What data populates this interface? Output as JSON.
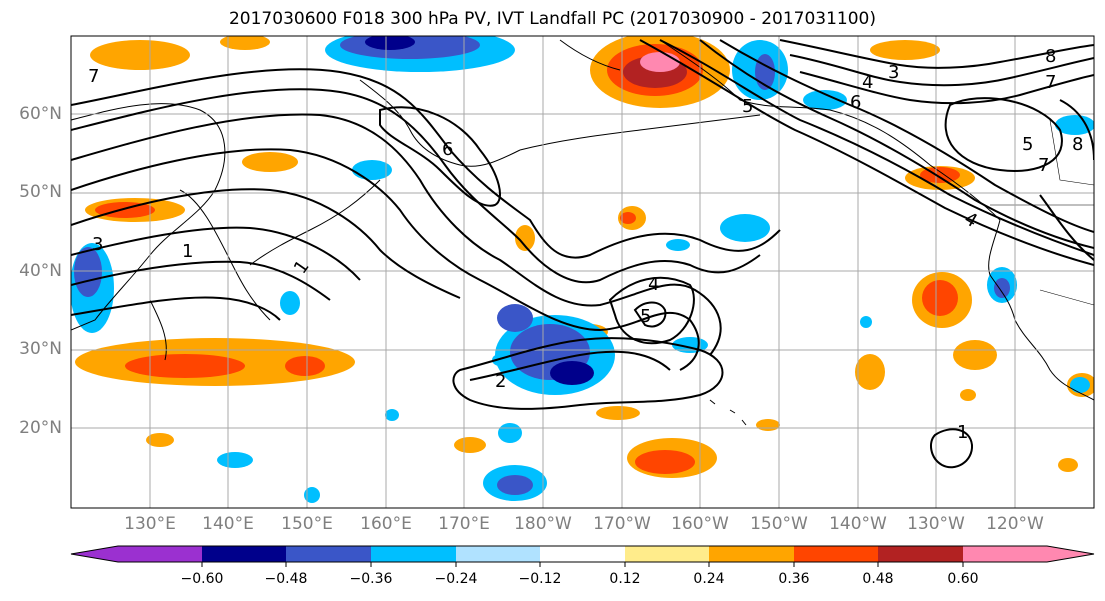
{
  "title": "2017030600 F018 300 hPa PV, IVT Landfall PC (2017030900 - 2017031100)",
  "map": {
    "lat_labels": [
      "60°N",
      "50°N",
      "40°N",
      "30°N",
      "20°N"
    ],
    "lon_labels": [
      "130°E",
      "140°E",
      "150°E",
      "160°E",
      "170°E",
      "180°W",
      "170°W",
      "160°W",
      "150°W",
      "140°W",
      "130°W",
      "120°W"
    ],
    "grid": true,
    "contour_labels": [
      "1",
      "2",
      "3",
      "4",
      "5",
      "6",
      "7",
      "8"
    ]
  },
  "colorbar": {
    "ticks": [
      "−0.60",
      "−0.48",
      "−0.36",
      "−0.24",
      "−0.12",
      "0.12",
      "0.24",
      "0.36",
      "0.48",
      "0.60"
    ],
    "colors": [
      "#9b30d0",
      "#00008b",
      "#3a56c8",
      "#00bfff",
      "#b0e2ff",
      "#ffffff",
      "#ffec8b",
      "#ffa500",
      "#ff4500",
      "#b22222",
      "#ff88b0"
    ]
  }
}
